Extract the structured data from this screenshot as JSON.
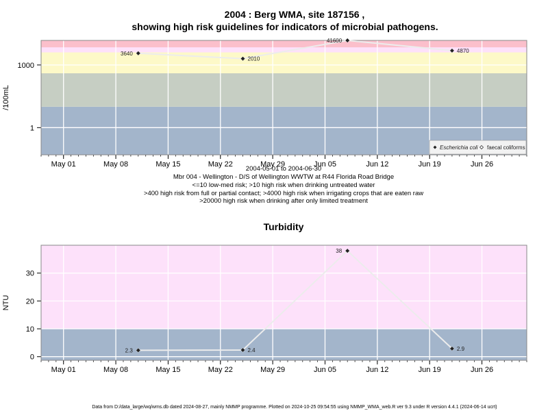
{
  "chart_data": [
    {
      "type": "line",
      "title_lines": [
        "2004 : Berg WMA, site 187156 ,",
        "showing high risk guidelines for indicators of microbial pathogens."
      ],
      "ylabel": "/100mL",
      "yscale": "log10",
      "ylim": [
        0.05,
        15000
      ],
      "y_ticks": [
        1,
        1000
      ],
      "x_range": [
        "2004-04-28",
        "2004-07-02"
      ],
      "x_ticks": [
        {
          "date": "2004-05-01",
          "label": "May 01"
        },
        {
          "date": "2004-05-08",
          "label": "May 08"
        },
        {
          "date": "2004-05-15",
          "label": "May 15"
        },
        {
          "date": "2004-05-22",
          "label": "May 22"
        },
        {
          "date": "2004-05-29",
          "label": "May 29"
        },
        {
          "date": "2004-06-05",
          "label": "Jun 05"
        },
        {
          "date": "2004-06-12",
          "label": "Jun 12"
        },
        {
          "date": "2004-06-19",
          "label": "Jun 19"
        },
        {
          "date": "2004-06-26",
          "label": "Jun 26"
        }
      ],
      "bands": [
        {
          "from": 0.05,
          "to": 10,
          "color": "#a3b5cb"
        },
        {
          "from": 10,
          "to": 400,
          "color": "#c6cec3"
        },
        {
          "from": 400,
          "to": 4000,
          "color": "#fdf9c8"
        },
        {
          "from": 4000,
          "to": 20000,
          "color": "#fde1fa"
        },
        {
          "from": 7000,
          "to": 15000,
          "color": "#fbbfcb"
        }
      ],
      "series": [
        {
          "name": "Escherichia coli",
          "points": [
            {
              "x": "2004-05-11",
              "y": 3640,
              "label": "3640"
            },
            {
              "x": "2004-05-25",
              "y": 2010,
              "label": "2010"
            },
            {
              "x": "2004-06-08",
              "y": 41600,
              "label": "41600"
            },
            {
              "x": "2004-06-22",
              "y": 4870,
              "label": "4870"
            }
          ]
        }
      ],
      "legend": {
        "position": "bottom-right",
        "entries": [
          "Escherichia coli",
          "faecal coliforms"
        ]
      },
      "caption_lines": [
        "2004-05-01 to 2004-06-30",
        "Mbr 004 - Wellington - D/S of Wellington WWTW at R44 Florida Road Bridge",
        "<=10 low-med risk; >10 high risk when drinking untreated water",
        ">400 high risk from full or partial contact; >4000 high risk when irrigating crops that are eaten raw",
        ">20000 high risk when drinking after only limited treatment"
      ]
    },
    {
      "type": "line",
      "title": "Turbidity",
      "ylabel": "NTU",
      "ylim": [
        -1.3,
        40
      ],
      "y_ticks": [
        0,
        10,
        20,
        30
      ],
      "x_range": [
        "2004-04-28",
        "2004-07-02"
      ],
      "bands": [
        {
          "from": -1.3,
          "to": 10,
          "color": "#a3b5cb"
        },
        {
          "from": 10,
          "to": 40,
          "color": "#fde1fa"
        }
      ],
      "series": [
        {
          "points": [
            {
              "x": "2004-05-11",
              "y": 2.3,
              "label": "2.3"
            },
            {
              "x": "2004-05-25",
              "y": 2.4,
              "label": "2.4"
            },
            {
              "x": "2004-06-08",
              "y": 38,
              "label": "38"
            },
            {
              "x": "2004-06-22",
              "y": 2.9,
              "label": "2.9"
            }
          ]
        }
      ]
    }
  ],
  "footer": "Data from D:/data_large/wq/wms.db dated 2024-08-27, mainly NMMP programme. Plotted on 2024-10-25 09:54:55 using NMMP_WMA_web.R ver 9.3 under R version 4.4.1 (2024-06-14 ucrt)"
}
